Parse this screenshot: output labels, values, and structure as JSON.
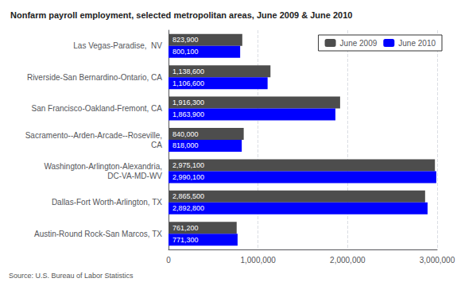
{
  "chart_data": {
    "type": "bar",
    "orientation": "horizontal",
    "title": "Nonfarm payroll employment, selected metropolitan areas, June 2009 & June 2010",
    "source": "Source: U.S. Bureau of Labor Statistics",
    "categories": [
      "Las Vegas-Paradise,  NV",
      "Riverside-San Bernardino-Ontario, CA",
      "San Francisco-Oakland-Fremont, CA",
      "Sacramento--Arden-Arcade--Roseville,\nCA",
      "Washington-Arlington-Alexandria,\nDC-VA-MD-WV",
      "Dallas-Fort Worth-Arlington, TX",
      "Austin-Round Rock-San Marcos, TX"
    ],
    "series": [
      {
        "name": "June 2009",
        "color": "#4d4d4d",
        "values": [
          823900,
          1138600,
          1916300,
          840000,
          2975100,
          2865500,
          761200
        ],
        "value_labels": [
          "823,900",
          "1,138,600",
          "1,916,300",
          "840,000",
          "2,975,100",
          "2,865,500",
          "761,200"
        ]
      },
      {
        "name": "June 2010",
        "color": "#0000ff",
        "values": [
          800100,
          1106600,
          1863900,
          818000,
          2990100,
          2892800,
          771300
        ],
        "value_labels": [
          "800,100",
          "1,106,600",
          "1,863,900",
          "818,000",
          "2,990,100",
          "2,892,800",
          "771,300"
        ]
      }
    ],
    "xlim": [
      0,
      3000000
    ],
    "xticks": [
      0,
      {
        "value": 1000000,
        "label": "1,000,000"
      },
      {
        "value": 2000000,
        "label": "2,000,000"
      },
      {
        "value": 3000000,
        "label": "3,000,000"
      }
    ],
    "grid": true,
    "legend": "upper right",
    "data_labels": true
  }
}
